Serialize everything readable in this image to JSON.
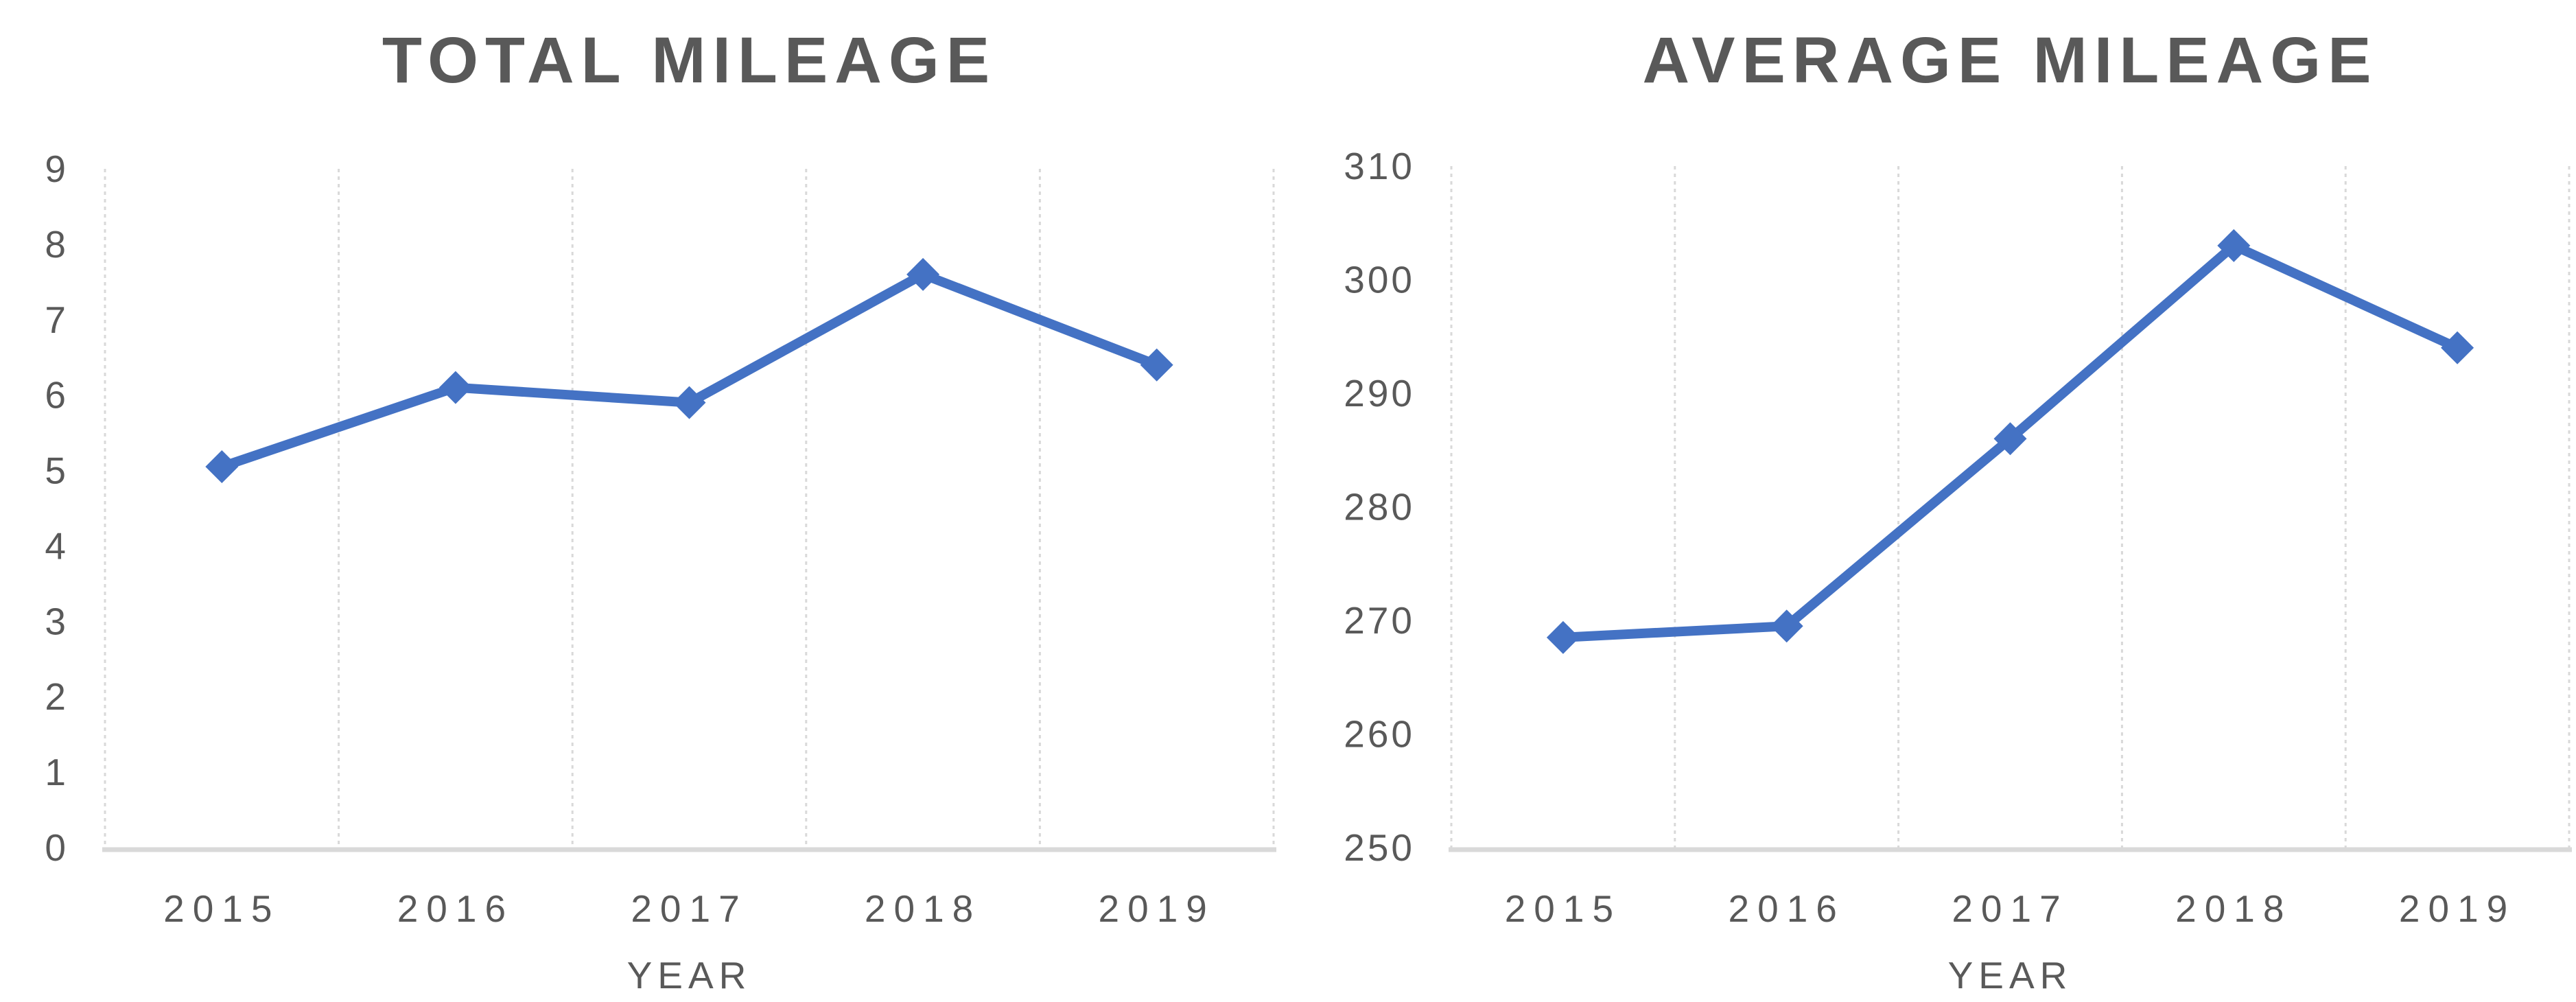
{
  "style": {
    "background": "#ffffff",
    "line_color": "#4472C4",
    "marker_color": "#4472C4",
    "grid_color": "#D9D9D9",
    "axis_line_color": "#D9D9D9",
    "text_color": "#595959",
    "title_color": "#595959"
  },
  "chart_data": [
    {
      "type": "line",
      "title": "TOTAL MILEAGE",
      "xlabel": "YEAR",
      "categories": [
        "2015",
        "2016",
        "2017",
        "2018",
        "2019"
      ],
      "values": [
        5.05,
        6.1,
        5.9,
        7.6,
        6.4
      ],
      "ylim": [
        0,
        9
      ],
      "y_step": 1,
      "y_tick_labels": [
        "0",
        "1",
        "2",
        "3",
        "4",
        "5",
        "6",
        "7",
        "8",
        "9"
      ],
      "grid": "vertical-only",
      "legend": "none",
      "marker": "diamond"
    },
    {
      "type": "line",
      "title": "AVERAGE MILEAGE",
      "xlabel": "YEAR",
      "categories": [
        "2015",
        "2016",
        "2017",
        "2018",
        "2019"
      ],
      "values": [
        268.5,
        269.5,
        286,
        303,
        294
      ],
      "ylim": [
        250,
        310
      ],
      "y_step": 10,
      "y_tick_labels": [
        "250",
        "260",
        "270",
        "280",
        "290",
        "300",
        "310"
      ],
      "grid": "vertical-only",
      "legend": "none",
      "marker": "diamond"
    }
  ]
}
